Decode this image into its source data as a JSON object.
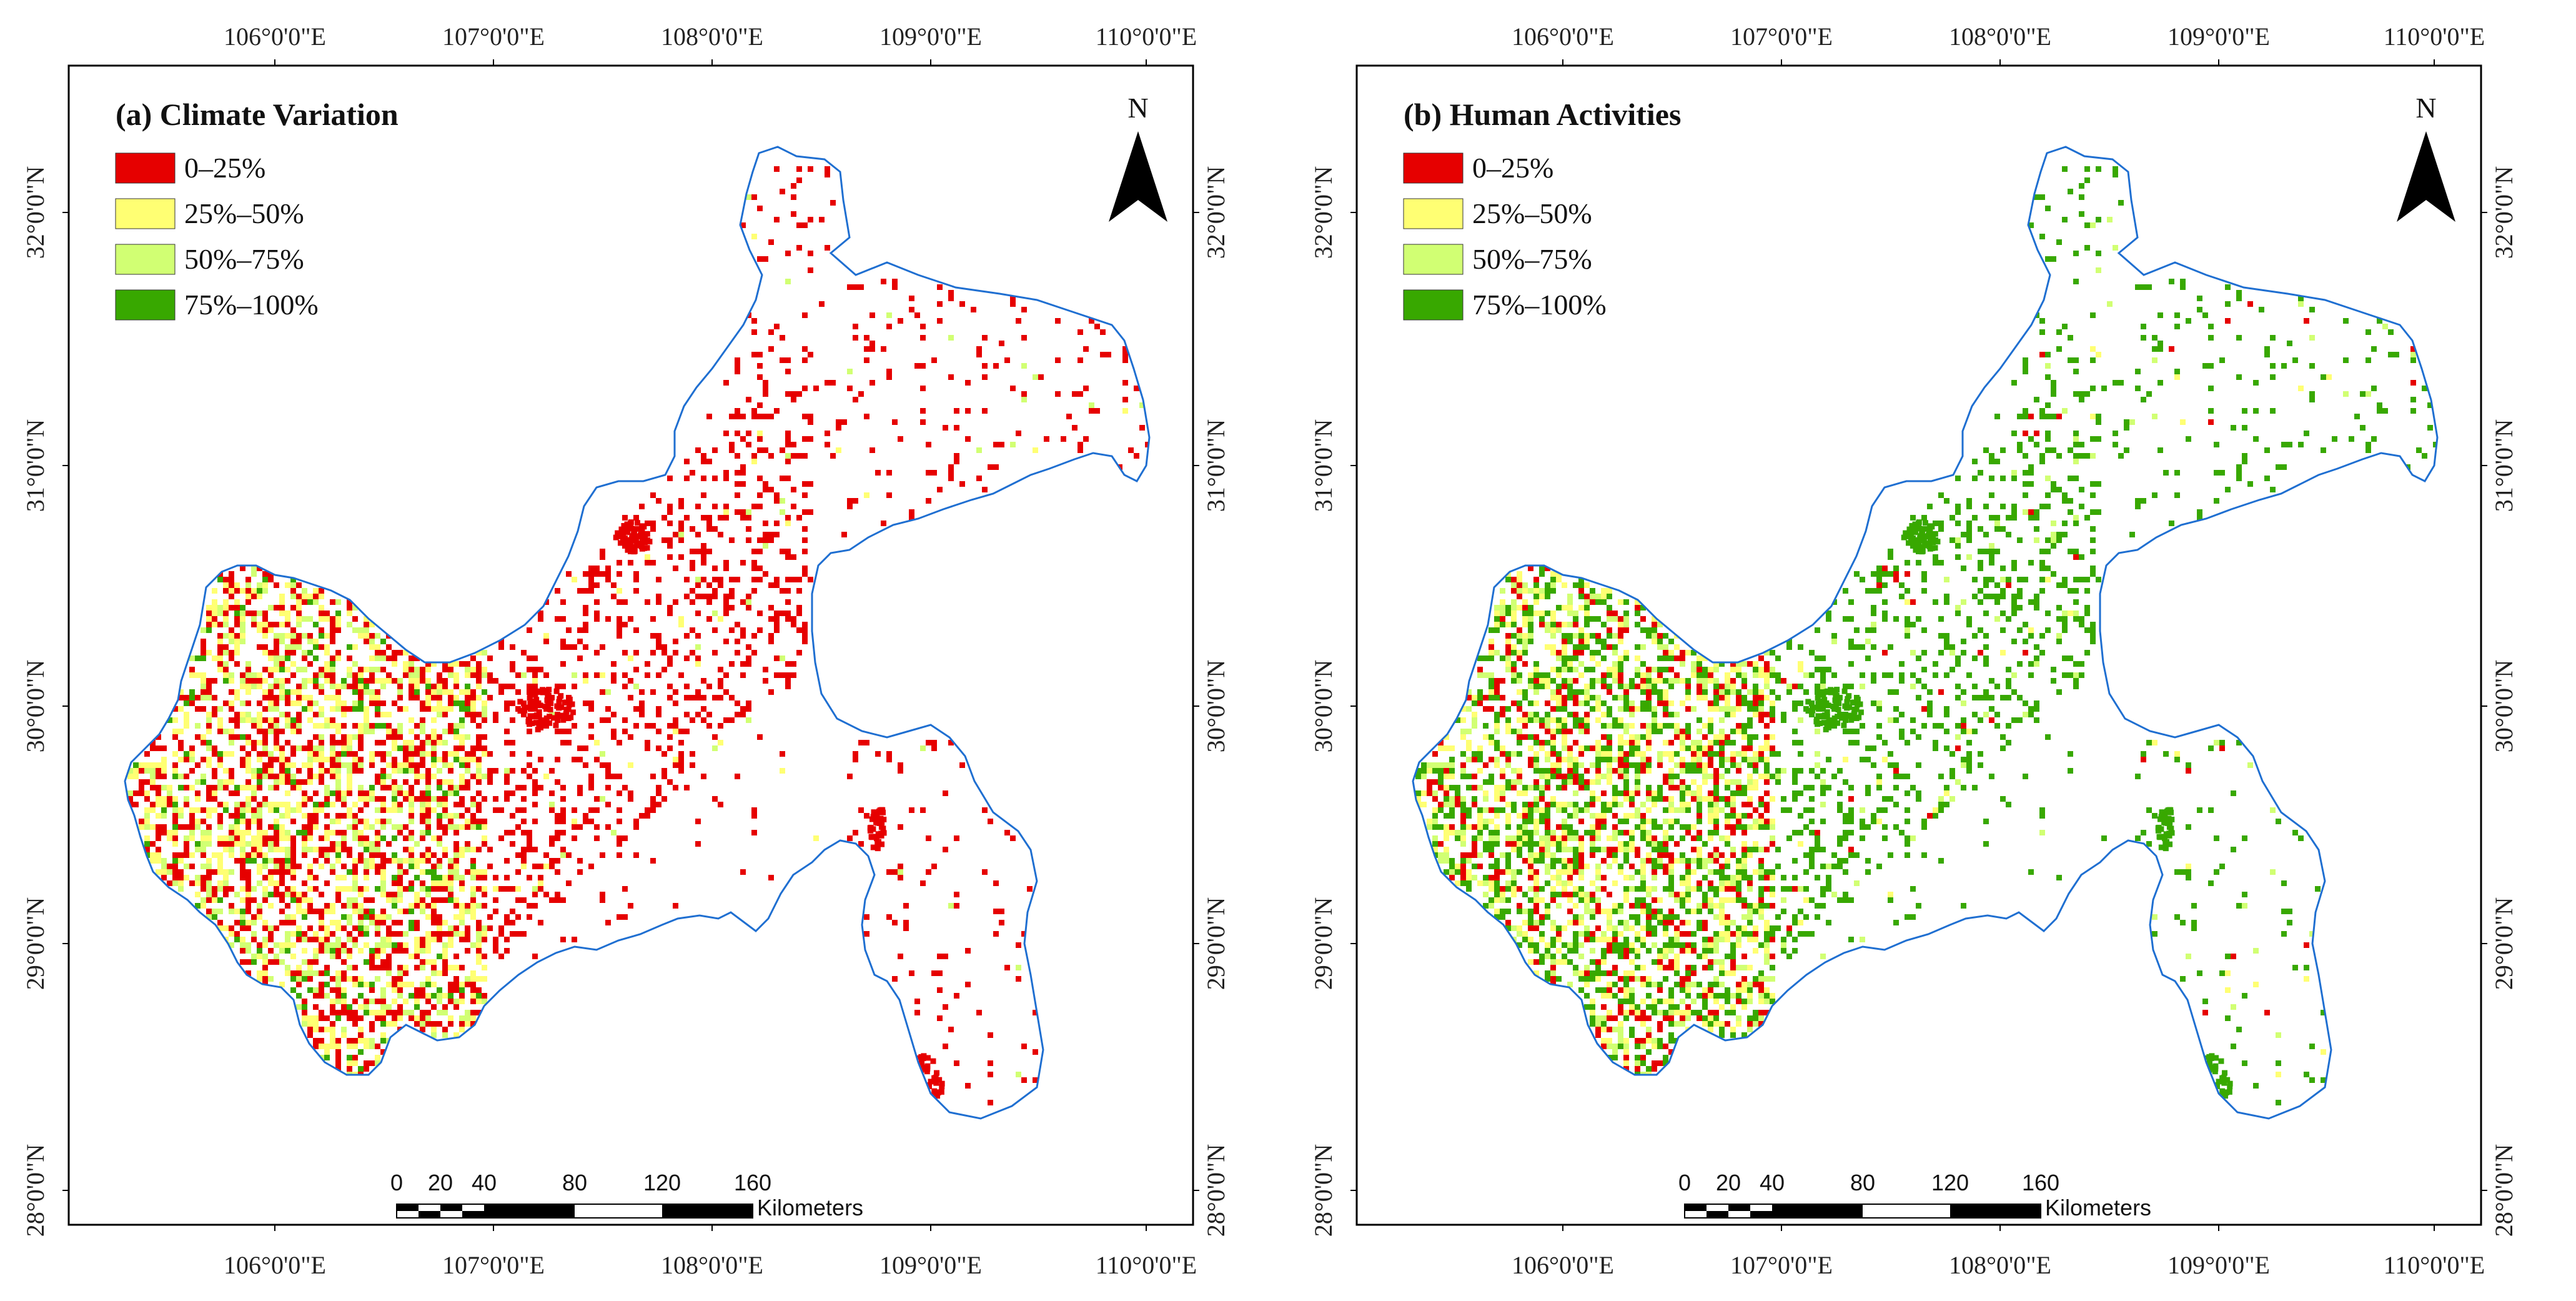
{
  "colors": {
    "class_0_25": "#e60000",
    "class_25_50": "#ffff73",
    "class_50_75": "#d1ff73",
    "class_75_100": "#38a800",
    "boundary": "#1f6fd1"
  },
  "axes": {
    "lon_ticks": [
      "106°0'0\"E",
      "107°0'0\"E",
      "108°0'0\"E",
      "109°0'0\"E",
      "110°0'0\"E"
    ],
    "lat_ticks": [
      "28°0'0\"N",
      "29°0'0\"N",
      "30°0'0\"N",
      "31°0'0\"N",
      "32°0'0\"N"
    ]
  },
  "north_arrow": {
    "label": "N",
    "icon": "north-arrow-icon"
  },
  "scale_bar": {
    "ticks": [
      "0",
      "20",
      "40",
      "80",
      "120",
      "160"
    ],
    "unit": "Kilometers"
  },
  "panels": [
    {
      "title": "(a) Climate Variation",
      "legend": [
        {
          "label": "0–25%",
          "color": "#e60000"
        },
        {
          "label": "25%–50%",
          "color": "#ffff73"
        },
        {
          "label": "50%–75%",
          "color": "#d1ff73"
        },
        {
          "label": "75%–100%",
          "color": "#38a800"
        }
      ]
    },
    {
      "title": "(b) Human Activities",
      "legend": [
        {
          "label": "0–25%",
          "color": "#e60000"
        },
        {
          "label": "25%–50%",
          "color": "#ffff73"
        },
        {
          "label": "50%–75%",
          "color": "#d1ff73"
        },
        {
          "label": "75%–100%",
          "color": "#38a800"
        }
      ]
    }
  ]
}
